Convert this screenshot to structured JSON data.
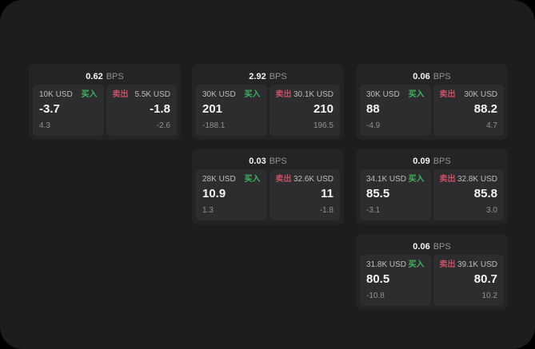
{
  "labels": {
    "bps_unit": "BPS",
    "buy": "买入",
    "sell": "卖出"
  },
  "colors": {
    "page-bg": "#000000",
    "panel-bg": "#1d1d1f",
    "card-bg": "#242427",
    "tile-bg": "#2d2d30",
    "text-primary": "#f5f5f5",
    "text-label": "#bdbdbd",
    "text-muted": "#929292",
    "buy-green": "#3eb45c",
    "sell-red": "#c85063"
  },
  "cards": [
    {
      "bps": "0.62",
      "buy": {
        "amount": "10K USD",
        "price": "-3.7",
        "sub": "4.3"
      },
      "sell": {
        "amount": "5.5K USD",
        "price": "-1.8",
        "sub": "-2.6"
      }
    },
    {
      "bps": "2.92",
      "buy": {
        "amount": "30K USD",
        "price": "201",
        "sub": "-188.1"
      },
      "sell": {
        "amount": "30.1K USD",
        "price": "210",
        "sub": "196.5"
      }
    },
    {
      "bps": "0.03",
      "buy": {
        "amount": "28K USD",
        "price": "10.9",
        "sub": "1.3"
      },
      "sell": {
        "amount": "32.6K USD",
        "price": "11",
        "sub": "-1.8"
      }
    },
    {
      "bps": "0.06",
      "buy": {
        "amount": "30K USD",
        "price": "88",
        "sub": "-4.9"
      },
      "sell": {
        "amount": "30K USD",
        "price": "88.2",
        "sub": "4.7"
      }
    },
    {
      "bps": "0.09",
      "buy": {
        "amount": "34.1K USD",
        "price": "85.5",
        "sub": "-3.1"
      },
      "sell": {
        "amount": "32.8K USD",
        "price": "85.8",
        "sub": "3.0"
      }
    },
    {
      "bps": "0.06",
      "buy": {
        "amount": "31.8K USD",
        "price": "80.5",
        "sub": "-10.8"
      },
      "sell": {
        "amount": "39.1K USD",
        "price": "80.7",
        "sub": "10.2"
      }
    }
  ]
}
